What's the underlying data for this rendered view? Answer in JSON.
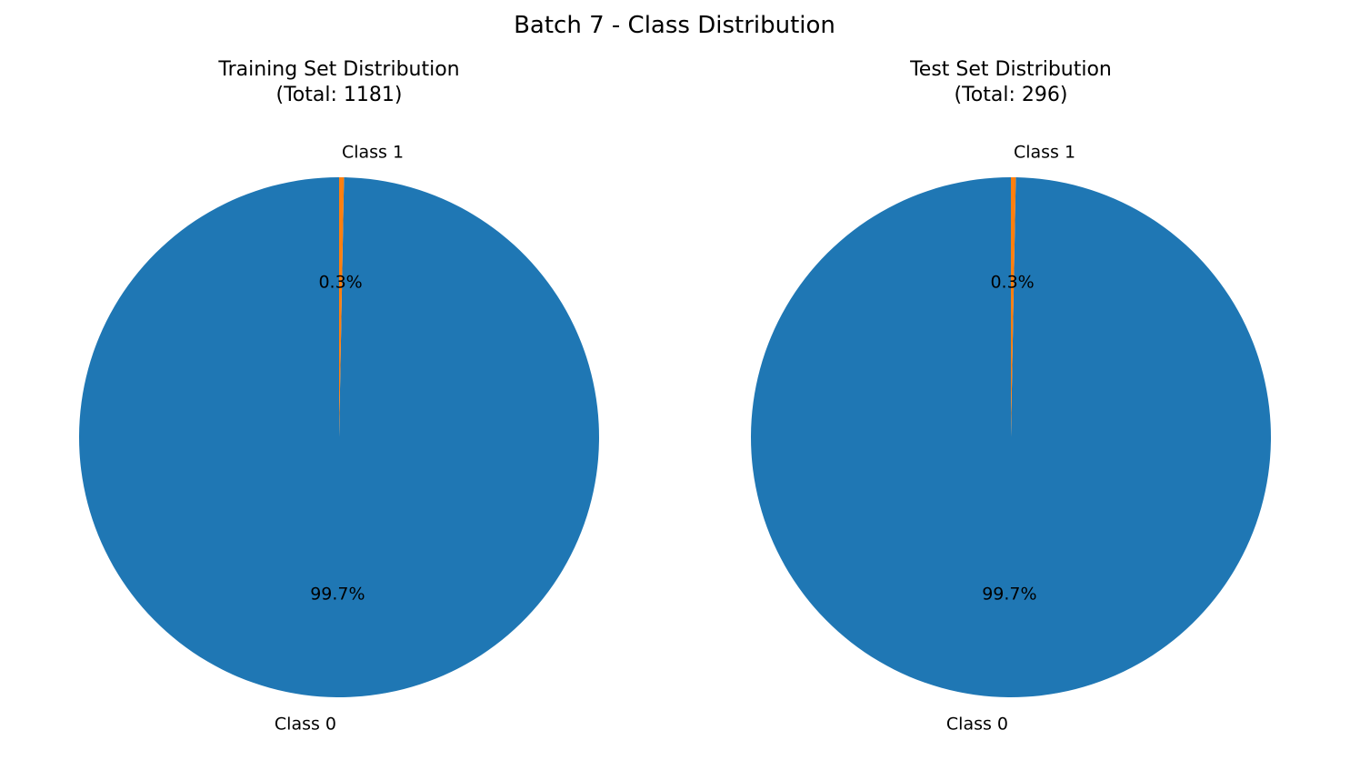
{
  "figure": {
    "suptitle": "Batch 7 - Class Distribution"
  },
  "chart_data": [
    {
      "type": "pie",
      "title": "Training Set Distribution\n(Total: 1181)",
      "title_lines": [
        "Training Set Distribution",
        "(Total: 1181)"
      ],
      "labels": [
        "Class 0",
        "Class 1"
      ],
      "values": [
        99.7,
        0.3
      ],
      "value_labels": [
        "99.7%",
        "0.3%"
      ],
      "colors": [
        "#1f77b4",
        "#ff7f0e"
      ],
      "start_angle": 90,
      "legend": "none"
    },
    {
      "type": "pie",
      "title": "Test Set Distribution\n(Total: 296)",
      "title_lines": [
        "Test Set Distribution",
        "(Total: 296)"
      ],
      "labels": [
        "Class 0",
        "Class 1"
      ],
      "values": [
        99.7,
        0.3
      ],
      "value_labels": [
        "99.7%",
        "0.3%"
      ],
      "colors": [
        "#1f77b4",
        "#ff7f0e"
      ],
      "start_angle": 90,
      "legend": "none"
    }
  ]
}
